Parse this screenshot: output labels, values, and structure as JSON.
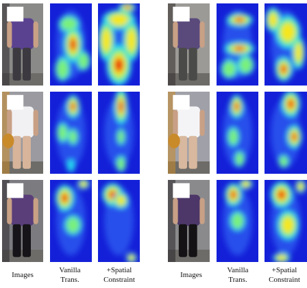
{
  "figure": {
    "groups": [
      {
        "rows": [
          {
            "person": {
              "shirt": "#5b4290",
              "pants": "#3c3a40",
              "bg": "#8a8a88",
              "fg": "#2d2a2e"
            }
          },
          {
            "person": {
              "shirt": "#f1f1f3",
              "pants": "#d7b49a",
              "bg": "#9a9aa0",
              "fg": "#c98a2a"
            }
          },
          {
            "person": {
              "shirt": "#5a3e7a",
              "pants": "#161418",
              "bg": "#7c7c80",
              "fg": "#2e2a30"
            }
          }
        ]
      },
      {
        "rows": [
          {
            "person": {
              "shirt": "#5a4a7c",
              "pants": "#4a4a48",
              "bg": "#9c9a96",
              "fg": "#2f2c2b"
            }
          },
          {
            "person": {
              "shirt": "#f4f4f6",
              "pants": "#d8b89e",
              "bg": "#a0a0a8",
              "fg": "#c98a2a"
            }
          },
          {
            "person": {
              "shirt": "#4d3768",
              "pants": "#141214",
              "bg": "#8a8a8c",
              "fg": "#2a272a"
            }
          }
        ]
      }
    ],
    "captions": {
      "images": "Images",
      "vanilla_line1": "Vanilla",
      "vanilla_line2": "Trans.",
      "spatial_line1": "+Spatial",
      "spatial_line2": "Constraint"
    },
    "colors": {
      "heat_low": "#1420d8",
      "heat_mid": "#28d8f0",
      "heat_mid2": "#7af07a",
      "heat_high": "#f6e61a",
      "heat_peak": "#e81a10"
    }
  }
}
